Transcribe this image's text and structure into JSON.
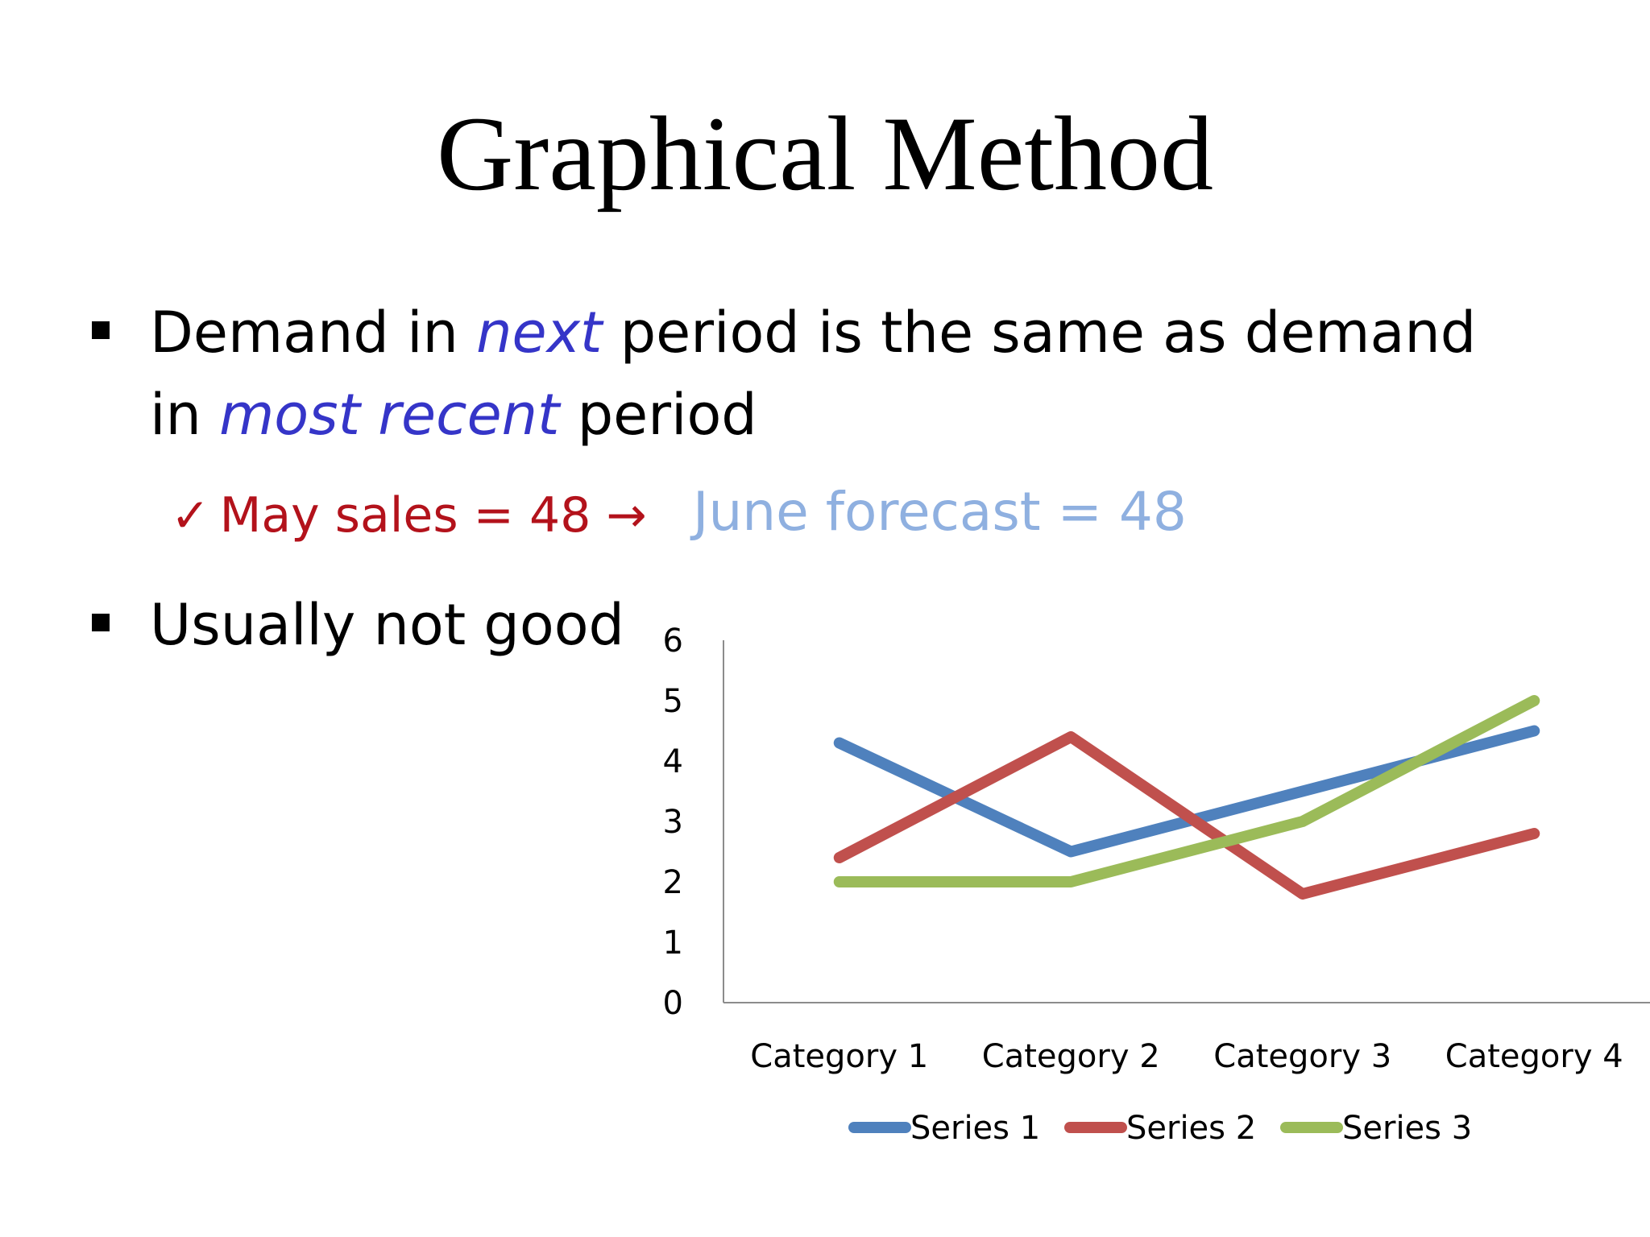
{
  "slide": {
    "title": "Graphical Method",
    "bullet1": {
      "t1": "Demand in ",
      "em1": "next",
      "t2": " period is the same as demand",
      "t3": "in ",
      "em2": "most recent",
      "t4": " period"
    },
    "sub_bullet": {
      "check": "✓",
      "may": "May sales = 48 →",
      "june": "June forecast = 48"
    },
    "bullet2": "Usually not good"
  },
  "colors": {
    "emphasis": "#3535c8",
    "may": "#b3121b",
    "june": "#8fb0e0"
  },
  "chart_data": {
    "type": "line",
    "categories": [
      "Category 1",
      "Category 2",
      "Category 3",
      "Category 4"
    ],
    "series": [
      {
        "name": "Series 1",
        "color": "#4f81bd",
        "values": [
          4.3,
          2.5,
          3.5,
          4.5
        ]
      },
      {
        "name": "Series 2",
        "color": "#c0504d",
        "values": [
          2.4,
          4.4,
          1.8,
          2.8
        ]
      },
      {
        "name": "Series 3",
        "color": "#9bbb59",
        "values": [
          2.0,
          2.0,
          3.0,
          5.0
        ]
      }
    ],
    "yticks": [
      "0",
      "1",
      "2",
      "3",
      "4",
      "5",
      "6"
    ],
    "ylim": [
      0,
      6
    ],
    "legend": "bottom",
    "grid": false
  }
}
